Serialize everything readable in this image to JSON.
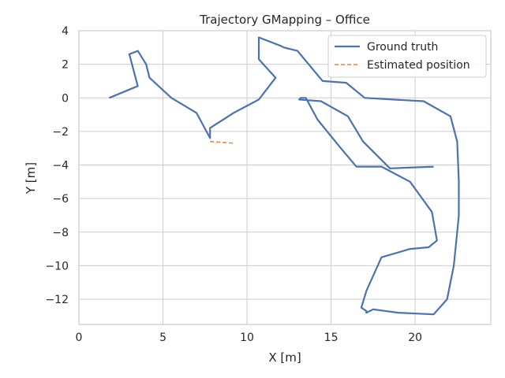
{
  "chart_data": {
    "type": "line",
    "title": "Trajectory GMapping – Office",
    "xlabel": "X [m]",
    "ylabel": "Y [m]",
    "xlim": [
      0,
      24.5
    ],
    "ylim": [
      -13.5,
      4
    ],
    "xticks": [
      0,
      5,
      10,
      15,
      20
    ],
    "yticks": [
      4,
      2,
      0,
      -2,
      -4,
      -6,
      -8,
      -10,
      -12
    ],
    "grid": true,
    "legend_position": "top-right",
    "series": [
      {
        "name": "Ground truth",
        "color": "#4c72b0",
        "style": "solid",
        "x": [
          1.8,
          3.5,
          3.0,
          3.5,
          4.0,
          4.2,
          5.5,
          7.0,
          7.8,
          7.8,
          9.2,
          10.7,
          11.7,
          10.7,
          10.7,
          12.0,
          12.2,
          13.0,
          14.5,
          15.9,
          17.0,
          18.7,
          20.5,
          22.1,
          22.5,
          22.6,
          22.6,
          22.5,
          22.3,
          21.9,
          21.1,
          19.0,
          17.5,
          17.1,
          17.1,
          16.8,
          17.1,
          18.0,
          19.7,
          20.8,
          21.3,
          21.0,
          19.7,
          18.0,
          16.5,
          15.5,
          14.2,
          13.5,
          13.2,
          13.1,
          14.4,
          16.0,
          16.9,
          18.5,
          21.1
        ],
        "y": [
          0.0,
          0.7,
          2.6,
          2.8,
          2.0,
          1.2,
          0.0,
          -0.9,
          -2.4,
          -1.8,
          -0.9,
          -0.1,
          1.2,
          2.3,
          3.6,
          3.1,
          3.0,
          2.8,
          1.0,
          0.9,
          0.0,
          -0.1,
          -0.2,
          -1.1,
          -2.6,
          -5.0,
          -7.0,
          -8.0,
          -10.0,
          -12.0,
          -12.9,
          -12.8,
          -12.6,
          -12.8,
          -12.7,
          -12.5,
          -11.5,
          -9.5,
          -9.0,
          -8.9,
          -8.5,
          -6.8,
          -5.0,
          -4.1,
          -4.1,
          -2.9,
          -1.3,
          0.0,
          0.0,
          -0.1,
          -0.2,
          -1.1,
          -2.6,
          -4.2,
          -4.1
        ]
      },
      {
        "name": "Estimated position",
        "color": "#dd8452",
        "style": "dashed",
        "x": [
          7.8,
          9.2
        ],
        "y": [
          -2.6,
          -2.7
        ]
      }
    ]
  }
}
